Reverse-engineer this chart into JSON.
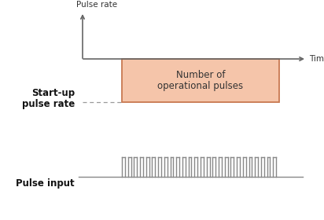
{
  "bg_color": "#ffffff",
  "axis_color": "#666666",
  "rect_fill_color": "#f5c5aa",
  "rect_edge_color": "#c87850",
  "dashed_line_color": "#999999",
  "pulse_color": "#888888",
  "text_color": "#333333",
  "bold_color": "#111111",
  "ylabel": "Pulse rate",
  "xlabel": "Time",
  "startup_line1": "Start-up",
  "startup_line2": "pulse rate",
  "rect_label1": "Number of",
  "rect_label2": "operational pulses",
  "pulse_input_label": "Pulse input",
  "n_pulses": 26,
  "fig_width": 4.12,
  "fig_height": 2.8,
  "dpi": 100
}
